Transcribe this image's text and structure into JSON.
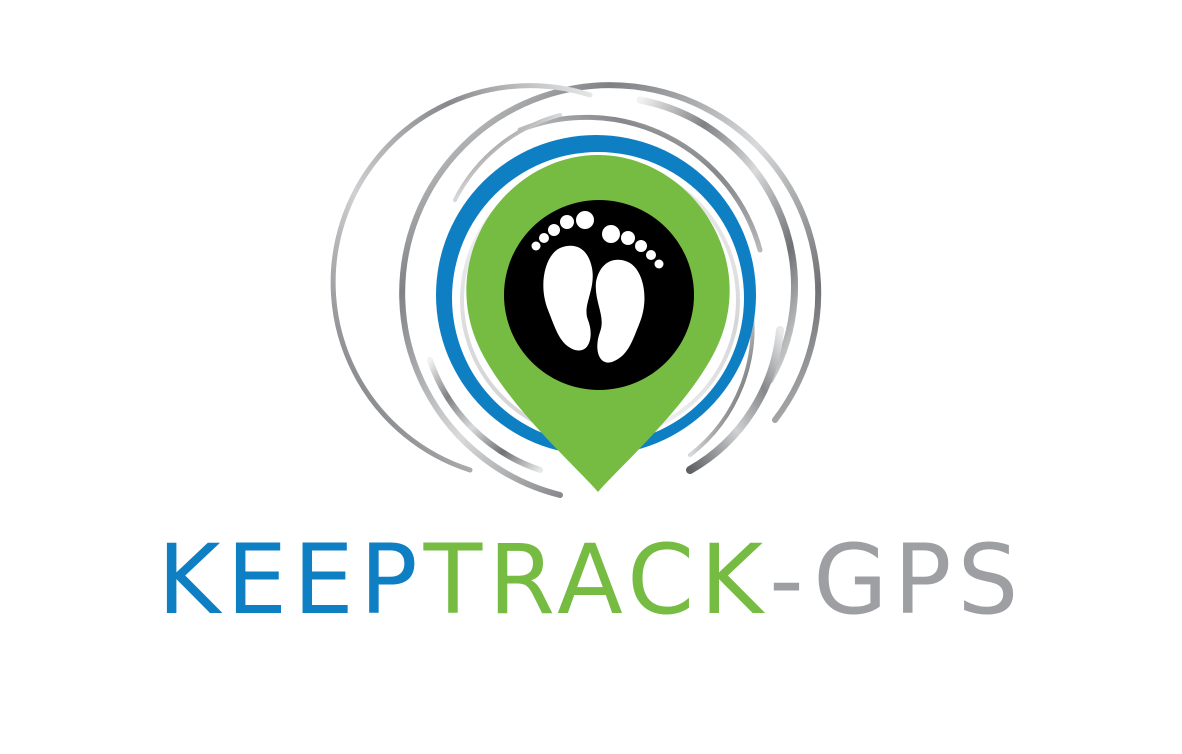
{
  "logo": {
    "icon": "footprints-location-pin-icon",
    "wordmark": {
      "part1": "KEEP",
      "part2": "TRACK",
      "part3": "-GPS"
    }
  },
  "colors": {
    "blue": "#0f7fc4",
    "green": "#76bc43",
    "gray": "#9d9fa2",
    "black": "#000000",
    "white": "#ffffff"
  }
}
